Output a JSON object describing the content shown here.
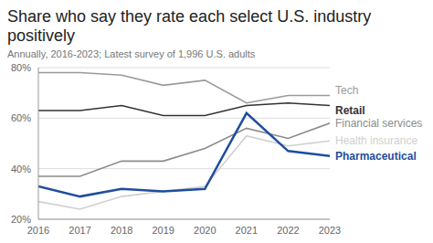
{
  "chart_data": {
    "type": "line",
    "title": "Share who say they rate each select U.S. industry positively",
    "subtitle": "Annually, 2016-2023; Latest survey of 1,996 U.S. adults",
    "x": [
      2016,
      2017,
      2018,
      2019,
      2020,
      2021,
      2022,
      2023
    ],
    "xlim": [
      2016,
      2023
    ],
    "xticks": [
      2016,
      2017,
      2018,
      2019,
      2020,
      2021,
      2022,
      2023
    ],
    "ylim": [
      20,
      80
    ],
    "yticks": [
      {
        "value": 20,
        "label": "20%"
      },
      {
        "value": 40,
        "label": "40%"
      },
      {
        "value": 60,
        "label": "60%"
      },
      {
        "value": 80,
        "label": "80%"
      }
    ],
    "grid": true,
    "series": [
      {
        "name": "Tech",
        "color": "#9a9a9a",
        "values": [
          78,
          78,
          77,
          73,
          75,
          66,
          69,
          69
        ]
      },
      {
        "name": "Retail",
        "color": "#333333",
        "values": [
          63,
          63,
          65,
          61,
          61,
          65,
          66,
          65
        ]
      },
      {
        "name": "Financial services",
        "color": "#8c8c8c",
        "values": [
          37,
          37,
          43,
          43,
          48,
          56,
          52,
          58
        ]
      },
      {
        "name": "Health insurance",
        "color": "#cfcfcf",
        "values": [
          27,
          24,
          29,
          31,
          33,
          53,
          49,
          51
        ]
      },
      {
        "name": "Pharmaceutical",
        "color": "#1f4e9e",
        "values": [
          33,
          29,
          32,
          31,
          32,
          62,
          47,
          45
        ]
      }
    ]
  }
}
